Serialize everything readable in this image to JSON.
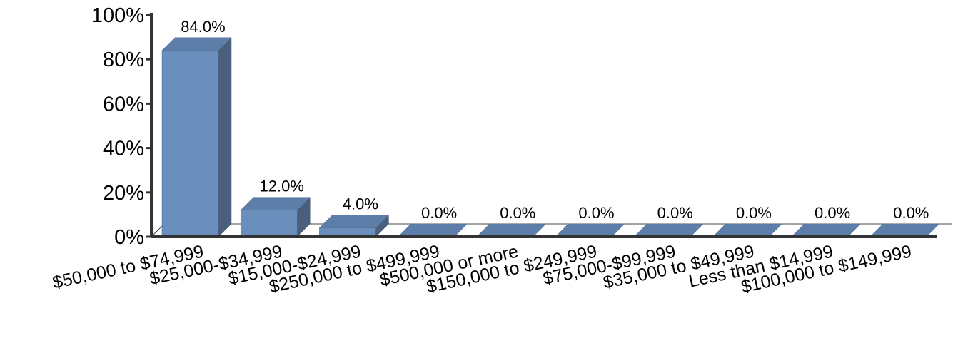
{
  "chart_data": {
    "type": "bar",
    "categories": [
      "$50,000 to $74,999",
      "$25,000-$34,999",
      "$15,000-$24,999",
      "$250,000 to $499,999",
      "$500,000 or more",
      "$150,000 to $249,999",
      "$75,000-$99,999",
      "$35,000 to $49,999",
      "Less than $14,999",
      "$100,000 to $149,999"
    ],
    "values": [
      84.0,
      12.0,
      4.0,
      0.0,
      0.0,
      0.0,
      0.0,
      0.0,
      0.0,
      0.0
    ],
    "data_labels": [
      "84.0%",
      "12.0%",
      "4.0%",
      "0.0%",
      "0.0%",
      "0.0%",
      "0.0%",
      "0.0%",
      "0.0%",
      "0.0%"
    ],
    "y_ticks": [
      0,
      20,
      40,
      60,
      80,
      100
    ],
    "y_tick_labels": [
      "0%",
      "20%",
      "40%",
      "60%",
      "80%",
      "100%"
    ],
    "ylim": [
      0,
      100
    ],
    "grid": false,
    "style": "3d",
    "colors": {
      "front": "#6a8fbd",
      "side": "#4a5f7c",
      "top": "#5d7ea8",
      "axis": "#333333"
    }
  }
}
